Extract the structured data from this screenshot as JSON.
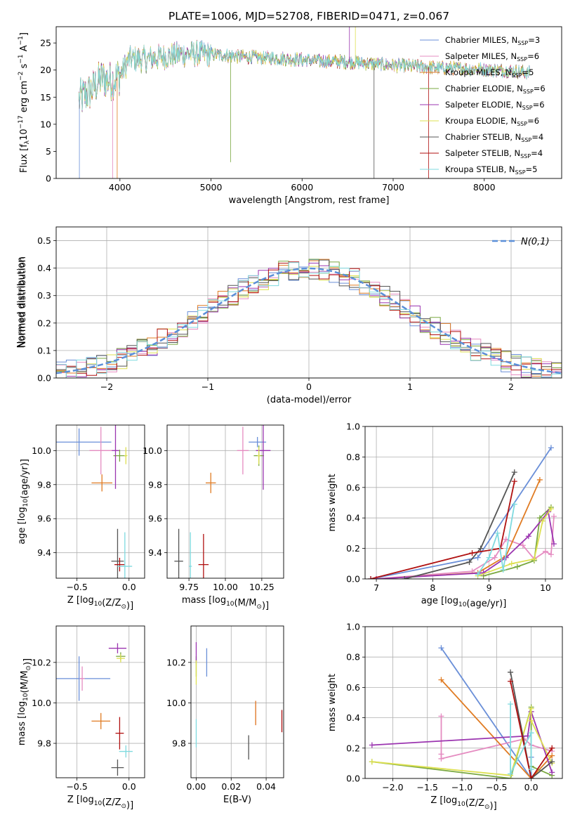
{
  "title": "PLATE=1006, MJD=52708, FIBERID=0471, z=0.067",
  "chart_data": [
    {
      "type": "line",
      "panel": "spectrum",
      "xlabel": "wavelength [Angstrom, rest frame]",
      "ylabel_parts": [
        "Flux [f",
        "λ",
        "10",
        "−17",
        " erg cm",
        "−2",
        " s",
        "−1",
        " A",
        "−1",
        "]"
      ],
      "xlim": [
        3300,
        8850
      ],
      "ylim": [
        0,
        28
      ],
      "xticks": [
        "4000",
        "5000",
        "6000",
        "7000",
        "8000"
      ],
      "yticks": [
        "0",
        "5",
        "10",
        "15",
        "20",
        "25"
      ],
      "legend_position": "upper right",
      "continuum": {
        "x": [
          3550,
          3700,
          3800,
          3900,
          4000,
          4100,
          4300,
          4500,
          4700,
          4900,
          5100,
          5300,
          5500,
          5700,
          5900,
          6100,
          6300,
          6500,
          6700,
          6900,
          7100,
          7300,
          7500,
          7700,
          7900,
          8100,
          8300,
          8500
        ],
        "y": [
          14.5,
          16.5,
          18.5,
          18.0,
          19.0,
          22.0,
          22.0,
          22.5,
          23.0,
          23.0,
          22.8,
          22.5,
          22.3,
          22.2,
          22.0,
          21.8,
          21.6,
          21.5,
          21.3,
          21.0,
          20.8,
          20.6,
          20.4,
          20.3,
          20.2,
          20.0,
          19.8,
          19.5
        ]
      },
      "series": [
        {
          "label_pre": "Chabrier MILES, N",
          "label_sub": "SSP",
          "label_post": "=3",
          "color": "#6a8fd8"
        },
        {
          "label_pre": "Salpeter MILES, N",
          "label_sub": "SSP",
          "label_post": "=6",
          "color": "#e58cc1"
        },
        {
          "label_pre": "Kroupa MILES, N",
          "label_sub": "SSP",
          "label_post": "=5",
          "color": "#e07b22"
        },
        {
          "label_pre": "Chabrier ELODIE, N",
          "label_sub": "SSP",
          "label_post": "=6",
          "color": "#7aa840"
        },
        {
          "label_pre": "Salpeter ELODIE, N",
          "label_sub": "SSP",
          "label_post": "=6",
          "color": "#9b35b0"
        },
        {
          "label_pre": "Kroupa ELODIE, N",
          "label_sub": "SSP",
          "label_post": "=6",
          "color": "#dde050"
        },
        {
          "label_pre": "Chabrier STELIB, N",
          "label_sub": "SSP",
          "label_post": "=4",
          "color": "#555555"
        },
        {
          "label_pre": "Salpeter STELIB, N",
          "label_sub": "SSP",
          "label_post": "=4",
          "color": "#b01010"
        },
        {
          "label_pre": "Kroupa STELIB, N",
          "label_sub": "SSP",
          "label_post": "=5",
          "color": "#7fdadf"
        }
      ]
    },
    {
      "type": "line",
      "panel": "residual histogram",
      "xlabel": "(data-model)/error",
      "ylabel": "Normed distribution",
      "xlim": [
        -2.5,
        2.5
      ],
      "ylim": [
        0,
        0.55
      ],
      "xticks": [
        "−2",
        "−1",
        "0",
        "1",
        "2"
      ],
      "yticks": [
        "0.0",
        "0.1",
        "0.2",
        "0.3",
        "0.4",
        "0.5"
      ],
      "grid": true,
      "legend_label": "N(0,1)",
      "legend_position": "upper right",
      "gaussian": {
        "mean": 0,
        "sigma": 1
      }
    },
    {
      "type": "scatter",
      "panel": "age vs Z",
      "xlabel": "Z [log10(Z/Z⊙)]",
      "ylabel": "age  [log10(age/yr)]",
      "xlim": [
        -0.7,
        0.15
      ],
      "ylim": [
        9.25,
        10.15
      ],
      "xticks": [
        "−0.5",
        "0.0"
      ],
      "yticks": [
        "9.4",
        "9.6",
        "9.8",
        "10.0"
      ],
      "grid": true,
      "points": [
        {
          "x": -0.48,
          "y": 10.05,
          "xerr": 0.62,
          "yerr": 0.16,
          "color": "#6a8fd8"
        },
        {
          "x": -0.27,
          "y": 10.0,
          "xerr": 0.22,
          "yerr": 0.28,
          "color": "#e58cc1"
        },
        {
          "x": -0.26,
          "y": 9.81,
          "xerr": 0.2,
          "yerr": 0.1,
          "color": "#e07b22"
        },
        {
          "x": -0.09,
          "y": 9.97,
          "xerr": 0.12,
          "yerr": 0.07,
          "color": "#7aa840"
        },
        {
          "x": -0.13,
          "y": 10.0,
          "xerr": 0.07,
          "yerr": 0.45,
          "color": "#9b35b0"
        },
        {
          "x": -0.03,
          "y": 9.97,
          "xerr": 0.03,
          "yerr": 0.1,
          "color": "#dde050"
        },
        {
          "x": -0.11,
          "y": 9.35,
          "xerr": 0.12,
          "yerr": 0.38,
          "color": "#555555"
        },
        {
          "x": -0.09,
          "y": 9.33,
          "xerr": 0.1,
          "yerr": 0.08,
          "color": "#b01010"
        },
        {
          "x": -0.04,
          "y": 9.32,
          "xerr": 0.14,
          "yerr": 0.4,
          "color": "#7fdadf"
        }
      ]
    },
    {
      "type": "scatter",
      "panel": "age vs mass",
      "xlabel": "mass [log10(M/M⊙)]",
      "ylabel": "",
      "xlim": [
        9.6,
        10.4
      ],
      "ylim": [
        9.25,
        10.15
      ],
      "xticks": [
        "9.75",
        "10.00",
        "10.25"
      ],
      "yticks": [
        "9.4",
        "9.6",
        "9.8",
        "10.0"
      ],
      "grid": true,
      "points": [
        {
          "x": 10.22,
          "y": 10.05,
          "xerr": 0.12,
          "yerr": 0.06,
          "color": "#6a8fd8"
        },
        {
          "x": 10.12,
          "y": 10.0,
          "xerr": 0.08,
          "yerr": 0.28,
          "color": "#e58cc1"
        },
        {
          "x": 9.9,
          "y": 9.81,
          "xerr": 0.07,
          "yerr": 0.12,
          "color": "#e07b22"
        },
        {
          "x": 10.23,
          "y": 9.97,
          "xerr": 0.07,
          "yerr": 0.12,
          "color": "#7aa840"
        },
        {
          "x": 10.26,
          "y": 10.0,
          "xerr": 0.1,
          "yerr": 0.46,
          "color": "#9b35b0"
        },
        {
          "x": 10.23,
          "y": 9.97,
          "xerr": 0.02,
          "yerr": 0.1,
          "color": "#dde050"
        },
        {
          "x": 9.68,
          "y": 9.35,
          "xerr": 0.06,
          "yerr": 0.38,
          "color": "#555555"
        },
        {
          "x": 9.85,
          "y": 9.33,
          "xerr": 0.07,
          "yerr": 0.36,
          "color": "#b01010"
        },
        {
          "x": 9.76,
          "y": 9.32,
          "xerr": 0.02,
          "yerr": 0.4,
          "color": "#7fdadf"
        }
      ]
    },
    {
      "type": "line",
      "panel": "mass weight vs age",
      "xlabel": "age  [log10(age/yr)]",
      "ylabel": "mass weight",
      "xlim": [
        6.8,
        10.3
      ],
      "ylim": [
        0,
        1
      ],
      "xticks": [
        "7",
        "8",
        "9",
        "10"
      ],
      "yticks": [
        "0.0",
        "0.2",
        "0.4",
        "0.6",
        "0.8",
        "1.0"
      ],
      "grid": true,
      "series": [
        {
          "color": "#6a8fd8",
          "x": [
            6.9,
            8.8,
            10.1
          ],
          "y": [
            0.0,
            0.14,
            0.86
          ]
        },
        {
          "color": "#e58cc1",
          "x": [
            7.0,
            8.7,
            9.1,
            9.3,
            9.6,
            9.8,
            10.0,
            10.1,
            10.15
          ],
          "y": [
            0.0,
            0.05,
            0.14,
            0.26,
            0.22,
            0.13,
            0.18,
            0.16,
            0.41
          ]
        },
        {
          "color": "#e07b22",
          "x": [
            7.0,
            8.8,
            9.3,
            9.9
          ],
          "y": [
            0.0,
            0.04,
            0.15,
            0.65
          ]
        },
        {
          "color": "#7aa840",
          "x": [
            8.9,
            9.5,
            9.8,
            9.9,
            10.1
          ],
          "y": [
            0.02,
            0.08,
            0.12,
            0.4,
            0.47
          ]
        },
        {
          "color": "#9b35b0",
          "x": [
            7.0,
            8.9,
            9.3,
            9.7,
            10.05,
            10.15
          ],
          "y": [
            0.0,
            0.04,
            0.14,
            0.28,
            0.44,
            0.23
          ]
        },
        {
          "color": "#dde050",
          "x": [
            8.8,
            9.4,
            9.8,
            9.95,
            10.1
          ],
          "y": [
            0.02,
            0.1,
            0.13,
            0.38,
            0.46
          ]
        },
        {
          "color": "#555555",
          "x": [
            7.5,
            8.65,
            8.85,
            9.45
          ],
          "y": [
            0.0,
            0.11,
            0.2,
            0.7
          ]
        },
        {
          "color": "#b01010",
          "x": [
            6.9,
            8.7,
            9.2,
            9.45
          ],
          "y": [
            0.0,
            0.17,
            0.2,
            0.64
          ]
        },
        {
          "color": "#7fdadf",
          "x": [
            8.8,
            9.0,
            9.15,
            9.25,
            9.45
          ],
          "y": [
            0.03,
            0.14,
            0.3,
            0.06,
            0.49
          ]
        }
      ]
    },
    {
      "type": "scatter",
      "panel": "mass vs Z",
      "xlabel": "Z [log10(Z/Z⊙)]",
      "ylabel": "mass [log10(M/M⊙)]",
      "xlim": [
        -0.7,
        0.15
      ],
      "ylim": [
        9.63,
        10.38
      ],
      "xticks": [
        "−0.5",
        "0.0"
      ],
      "yticks": [
        "9.8",
        "10.0",
        "10.2"
      ],
      "grid": true,
      "points": [
        {
          "x": -0.48,
          "y": 10.12,
          "xerr": 0.6,
          "yerr": 0.22,
          "color": "#6a8fd8"
        },
        {
          "x": -0.45,
          "y": 10.12,
          "xerr": 0.05,
          "yerr": 0.12,
          "color": "#e58cc1"
        },
        {
          "x": -0.27,
          "y": 9.91,
          "xerr": 0.18,
          "yerr": 0.08,
          "color": "#e07b22"
        },
        {
          "x": -0.08,
          "y": 10.23,
          "xerr": 0.09,
          "yerr": 0.04,
          "color": "#7aa840"
        },
        {
          "x": -0.11,
          "y": 10.27,
          "xerr": 0.17,
          "yerr": 0.05,
          "color": "#9b35b0"
        },
        {
          "x": -0.08,
          "y": 10.22,
          "xerr": 0.08,
          "yerr": 0.04,
          "color": "#dde050"
        },
        {
          "x": -0.11,
          "y": 9.68,
          "xerr": 0.12,
          "yerr": 0.08,
          "color": "#555555"
        },
        {
          "x": -0.09,
          "y": 9.85,
          "xerr": 0.08,
          "yerr": 0.16,
          "color": "#b01010"
        },
        {
          "x": -0.03,
          "y": 9.76,
          "xerr": 0.13,
          "yerr": 0.06,
          "color": "#7fdadf"
        }
      ]
    },
    {
      "type": "scatter",
      "panel": "mass vs E(B-V)",
      "xlabel": "E(B-V)",
      "ylabel": "",
      "xlim": [
        -0.003,
        0.05
      ],
      "ylim": [
        9.63,
        10.38
      ],
      "xticks": [
        "0.00",
        "0.02",
        "0.04"
      ],
      "yticks": [
        "9.8",
        "10.0",
        "10.2"
      ],
      "grid": true,
      "points": [
        {
          "x": 0.006,
          "y": 10.2,
          "xerr": 0,
          "yerr": 0.14,
          "color": "#6a8fd8"
        },
        {
          "x": 0.034,
          "y": 9.95,
          "xerr": 0,
          "yerr": 0.12,
          "color": "#e58cc1"
        },
        {
          "x": 0.034,
          "y": 9.95,
          "xerr": 0,
          "yerr": 0.12,
          "color": "#e07b22"
        },
        {
          "x": 0.0,
          "y": 10.18,
          "xerr": 0,
          "yerr": 0.1,
          "color": "#7aa840"
        },
        {
          "x": 0.0,
          "y": 10.25,
          "xerr": 0,
          "yerr": 0.1,
          "color": "#9b35b0"
        },
        {
          "x": 0.0,
          "y": 10.15,
          "xerr": 0,
          "yerr": 0.12,
          "color": "#dde050"
        },
        {
          "x": 0.03,
          "y": 9.78,
          "xerr": 0,
          "yerr": 0.12,
          "color": "#555555"
        },
        {
          "x": 0.049,
          "y": 9.91,
          "xerr": 0,
          "yerr": 0.11,
          "color": "#b01010"
        },
        {
          "x": 0.0,
          "y": 9.85,
          "xerr": 0,
          "yerr": 0.14,
          "color": "#7fdadf"
        }
      ]
    },
    {
      "type": "line",
      "panel": "mass weight vs Z",
      "xlabel": "Z [log10(Z/Z⊙)]",
      "ylabel": "mass weight",
      "xlim": [
        -2.4,
        0.45
      ],
      "ylim": [
        0,
        1
      ],
      "xticks": [
        "−2.0",
        "−1.5",
        "−1.0",
        "−0.5",
        "0.0"
      ],
      "yticks": [
        "0.0",
        "0.2",
        "0.4",
        "0.6",
        "0.8",
        "1.0"
      ],
      "grid": true,
      "series": [
        {
          "color": "#6a8fd8",
          "x": [
            -1.3,
            0.0,
            0.0
          ],
          "y": [
            0.86,
            0.0,
            0.14
          ]
        },
        {
          "color": "#e58cc1",
          "x": [
            -1.3,
            -1.3,
            -1.3,
            -0.1,
            0.0,
            0.3
          ],
          "y": [
            0.41,
            0.16,
            0.13,
            0.26,
            0.22,
            0.18
          ]
        },
        {
          "color": "#e07b22",
          "x": [
            -1.3,
            0.0,
            0.3
          ],
          "y": [
            0.65,
            0.0,
            0.15
          ]
        },
        {
          "color": "#7aa840",
          "x": [
            -2.3,
            -0.3,
            0.0,
            0.0,
            0.3
          ],
          "y": [
            0.11,
            0.0,
            0.47,
            0.08,
            0.02
          ]
        },
        {
          "color": "#9b35b0",
          "x": [
            -2.3,
            -0.05,
            0.0,
            0.3
          ],
          "y": [
            0.22,
            0.28,
            0.44,
            0.04
          ]
        },
        {
          "color": "#dde050",
          "x": [
            -2.3,
            -0.3,
            0.0,
            0.0,
            0.3
          ],
          "y": [
            0.11,
            0.02,
            0.46,
            0.38,
            0.1
          ]
        },
        {
          "color": "#555555",
          "x": [
            -0.3,
            0.0,
            0.3
          ],
          "y": [
            0.7,
            0.0,
            0.11
          ]
        },
        {
          "color": "#b01010",
          "x": [
            -0.3,
            0.0,
            0.3
          ],
          "y": [
            0.64,
            0.0,
            0.2
          ]
        },
        {
          "color": "#7fdadf",
          "x": [
            -0.3,
            -0.3,
            0.0,
            0.0
          ],
          "y": [
            0.49,
            0.03,
            0.3,
            0.06
          ]
        }
      ]
    }
  ]
}
